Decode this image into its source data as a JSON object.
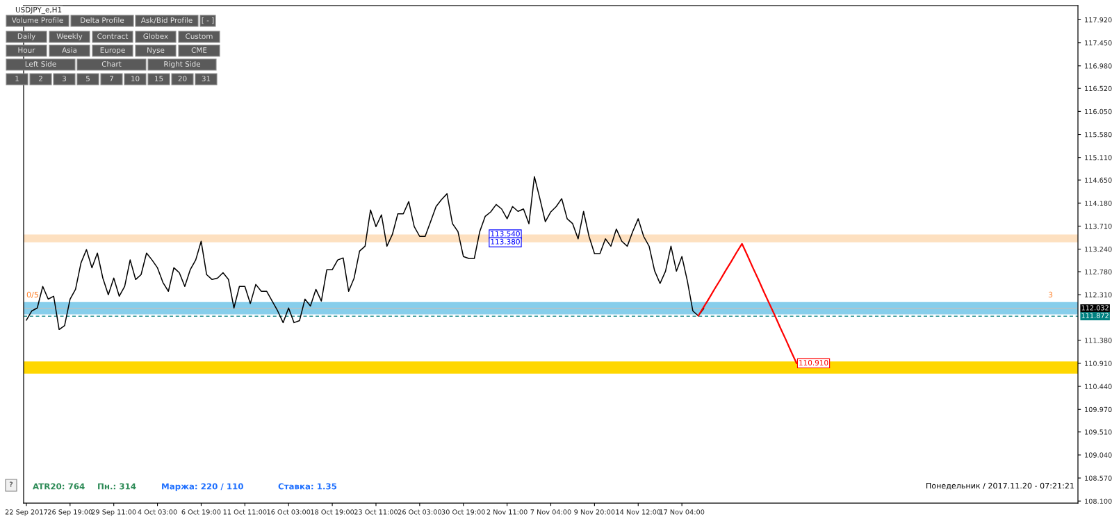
{
  "chart_data": {
    "type": "line",
    "title": "USDJPY_e,H1",
    "categories": [
      "22 Sep 2017",
      null,
      null,
      null,
      null,
      null,
      null,
      null,
      "26 Sep 19:00",
      null,
      null,
      null,
      null,
      null,
      null,
      null,
      "29 Sep 11:00",
      null,
      null,
      null,
      null,
      null,
      null,
      null,
      "4 Oct 03:00",
      null,
      null,
      null,
      null,
      null,
      null,
      null,
      "6 Oct 19:00",
      null,
      null,
      null,
      null,
      null,
      null,
      null,
      "11 Oct 11:00",
      null,
      null,
      null,
      null,
      null,
      null,
      null,
      "16 Oct 03:00",
      null,
      null,
      null,
      null,
      null,
      null,
      null,
      "18 Oct 19:00",
      null,
      null,
      null,
      null,
      null,
      null,
      null,
      "23 Oct 11:00",
      null,
      null,
      null,
      null,
      null,
      null,
      null,
      "26 Oct 03:00",
      null,
      null,
      null,
      null,
      null,
      null,
      null,
      "30 Oct 19:00",
      null,
      null,
      null,
      null,
      null,
      null,
      null,
      "2 Nov 11:00",
      null,
      null,
      null,
      null,
      null,
      null,
      null,
      "7 Nov 04:00",
      null,
      null,
      null,
      null,
      null,
      null,
      null,
      "9 Nov 20:00",
      null,
      null,
      null,
      null,
      null,
      null,
      null,
      "14 Nov 12:00",
      null,
      null,
      null,
      null,
      null,
      null,
      null,
      "17 Nov 04:00",
      null,
      null,
      null,
      null,
      null,
      null,
      null,
      null,
      null,
      null,
      null,
      null,
      null,
      null,
      null,
      null,
      null,
      null,
      null,
      null,
      null,
      null,
      null,
      null,
      null,
      null,
      null,
      null,
      null,
      null,
      null,
      null,
      null,
      null,
      null,
      null,
      null,
      null,
      null,
      null,
      null,
      null,
      null,
      null,
      null,
      null,
      null,
      null,
      null,
      null,
      null,
      null,
      null,
      null,
      null,
      null,
      null,
      null,
      null,
      null,
      null,
      null,
      null,
      null,
      null,
      null,
      null,
      null,
      null,
      null,
      null,
      null
    ],
    "series": [
      {
        "color": "#000000",
        "values": [
          111.79,
          111.98,
          112.04,
          112.48,
          112.22,
          112.28,
          111.6,
          111.68,
          112.22,
          112.42,
          112.96,
          113.23,
          112.86,
          113.16,
          112.65,
          112.31,
          112.65,
          112.28,
          112.48,
          113.02,
          112.62,
          112.72,
          113.16,
          113.02,
          112.86,
          112.56,
          112.38,
          112.86,
          112.76,
          112.48,
          112.82,
          113.02,
          113.4,
          112.72,
          112.62,
          112.65,
          112.76,
          112.62,
          112.04,
          112.48,
          112.48,
          112.13,
          112.52,
          112.38,
          112.38,
          112.18,
          111.98,
          111.74,
          112.04,
          111.74,
          111.78,
          112.22,
          112.08,
          112.42,
          112.18,
          112.82,
          112.82,
          113.02,
          113.06,
          112.38,
          112.65,
          113.2,
          113.3,
          114.04,
          113.7,
          113.94,
          113.3,
          113.54,
          113.96,
          113.96,
          114.21,
          113.7,
          113.5,
          113.5,
          113.8,
          114.11,
          114.25,
          114.37,
          113.76,
          113.6,
          113.09,
          113.05,
          113.05,
          113.6,
          113.91,
          114.0,
          114.15,
          114.06,
          113.86,
          114.11,
          114.01,
          114.06,
          113.76,
          114.72,
          114.27,
          113.8,
          114.0,
          114.11,
          114.27,
          113.86,
          113.76,
          113.45,
          114.01,
          113.5,
          113.15,
          113.15,
          113.45,
          113.3,
          113.65,
          113.4,
          113.3,
          113.6,
          113.86,
          113.5,
          113.3,
          112.8,
          112.54,
          112.79,
          113.3,
          112.79,
          113.09,
          112.59,
          111.98,
          111.88,
          112.03,
          null,
          null,
          null,
          null,
          null,
          null,
          null,
          null,
          null,
          null,
          null,
          null,
          null,
          null,
          null,
          null,
          null,
          null,
          null,
          null,
          null,
          null,
          null,
          null,
          null,
          null,
          null,
          null,
          null,
          null,
          null,
          null,
          null,
          null,
          null,
          null,
          null,
          null,
          null,
          null,
          null,
          null,
          null,
          null,
          null,
          null,
          null,
          null,
          null,
          null,
          null,
          null,
          null,
          null,
          null,
          null,
          null,
          null,
          null,
          null,
          null,
          null,
          null,
          null,
          null,
          null,
          null,
          null
        ]
      },
      {
        "color": "#ff0000",
        "values": [
          null,
          null,
          null,
          null,
          null,
          null,
          null,
          null,
          null,
          null,
          null,
          null,
          null,
          null,
          null,
          null,
          null,
          null,
          null,
          null,
          null,
          null,
          null,
          null,
          null,
          null,
          null,
          null,
          null,
          null,
          null,
          null,
          null,
          null,
          null,
          null,
          null,
          null,
          null,
          null,
          null,
          null,
          null,
          null,
          null,
          null,
          null,
          null,
          null,
          null,
          null,
          null,
          null,
          null,
          null,
          null,
          null,
          null,
          null,
          null,
          null,
          null,
          null,
          null,
          null,
          null,
          null,
          null,
          null,
          null,
          null,
          null,
          null,
          null,
          null,
          null,
          null,
          null,
          null,
          null,
          null,
          null,
          null,
          null,
          null,
          null,
          null,
          null,
          null,
          null,
          null,
          null,
          null,
          null,
          null,
          null,
          null,
          null,
          null,
          null,
          null,
          null,
          null,
          null,
          null,
          null,
          null,
          null,
          null,
          null,
          null,
          null,
          null,
          null,
          null,
          null,
          null,
          null,
          null,
          null,
          null,
          null,
          null,
          111.88,
          112.06,
          112.24,
          112.43,
          112.61,
          112.8,
          112.98,
          113.17,
          113.35,
          113.11,
          112.86,
          112.62,
          112.37,
          112.13,
          111.89,
          111.64,
          111.4,
          111.15,
          110.91,
          null,
          null,
          null,
          null,
          null,
          null,
          null,
          null,
          null,
          null,
          null,
          null,
          null,
          null,
          null,
          null,
          null,
          null,
          null,
          null,
          null,
          null,
          null,
          null,
          null,
          null,
          null,
          null,
          null,
          null,
          null,
          null,
          null,
          null,
          null,
          null,
          null,
          null,
          null,
          null,
          null,
          null,
          null,
          null,
          null,
          null,
          null,
          null,
          null,
          null,
          null
        ]
      }
    ],
    "ylim": [
      108.06,
      118.21
    ],
    "yticks": [
      {
        "value": 117.92,
        "label": "117.920"
      },
      {
        "value": 117.45,
        "label": "117.450"
      },
      {
        "value": 116.98,
        "label": "116.980"
      },
      {
        "value": 116.52,
        "label": "116.520"
      },
      {
        "value": 116.05,
        "label": "116.050"
      },
      {
        "value": 115.58,
        "label": "115.580"
      },
      {
        "value": 115.11,
        "label": "115.110"
      },
      {
        "value": 114.65,
        "label": "114.650"
      },
      {
        "value": 114.18,
        "label": "114.180"
      },
      {
        "value": 113.71,
        "label": "113.710"
      },
      {
        "value": 113.24,
        "label": "113.240"
      },
      {
        "value": 112.78,
        "label": "112.780"
      },
      {
        "value": 112.31,
        "label": "112.310"
      },
      {
        "value": 111.38,
        "label": "111.380"
      },
      {
        "value": 110.91,
        "label": "110.910"
      },
      {
        "value": 110.44,
        "label": "110.440"
      },
      {
        "value": 109.97,
        "label": "109.970"
      },
      {
        "value": 109.51,
        "label": "109.510"
      },
      {
        "value": 109.04,
        "label": "109.040"
      },
      {
        "value": 108.57,
        "label": "108.570"
      },
      {
        "value": 108.1,
        "label": "108.100"
      }
    ],
    "bands": [
      {
        "axis": "y",
        "from": 113.38,
        "to": 113.54,
        "color": "#fde0c0"
      },
      {
        "axis": "y",
        "from": 111.91,
        "to": 112.16,
        "color": "#87ceeb"
      },
      {
        "axis": "y",
        "from": 110.7,
        "to": 110.95,
        "color": "#ffd700"
      }
    ],
    "ref_lines": [
      {
        "axis": "y",
        "value": 112.032,
        "label": "112.032",
        "color": "#c0c0c0",
        "line_style": "solid"
      },
      {
        "axis": "y",
        "value": 111.872,
        "label": "111.872",
        "color": "#008080",
        "line_style": "dashed"
      }
    ],
    "annotations": [
      "Volume Profile",
      "Delta Profile",
      "Ask/Bid Profile",
      "[ - ]",
      "Daily",
      "Weekly",
      "Contract",
      "Globex",
      "Custom",
      "Hour",
      "Asia",
      "Europe",
      "Nyse",
      "CME",
      "Left Side",
      "Chart",
      "Right Side",
      "1",
      "2",
      "3",
      "5",
      "7",
      "10",
      "15",
      "20",
      "31",
      "?",
      "ATR20: 764",
      "Пн.: 314",
      "Маржа: 220 / 110",
      "Ставка: 1.35",
      "Понедельник / 2017.11.20 - 07:21:21",
      "0/5",
      "3",
      {
        "text": "113.540",
        "y": 113.54
      },
      {
        "text": "113.380",
        "y": 113.38
      },
      {
        "text": "110.910",
        "y": 110.91
      }
    ],
    "grid": false
  }
}
